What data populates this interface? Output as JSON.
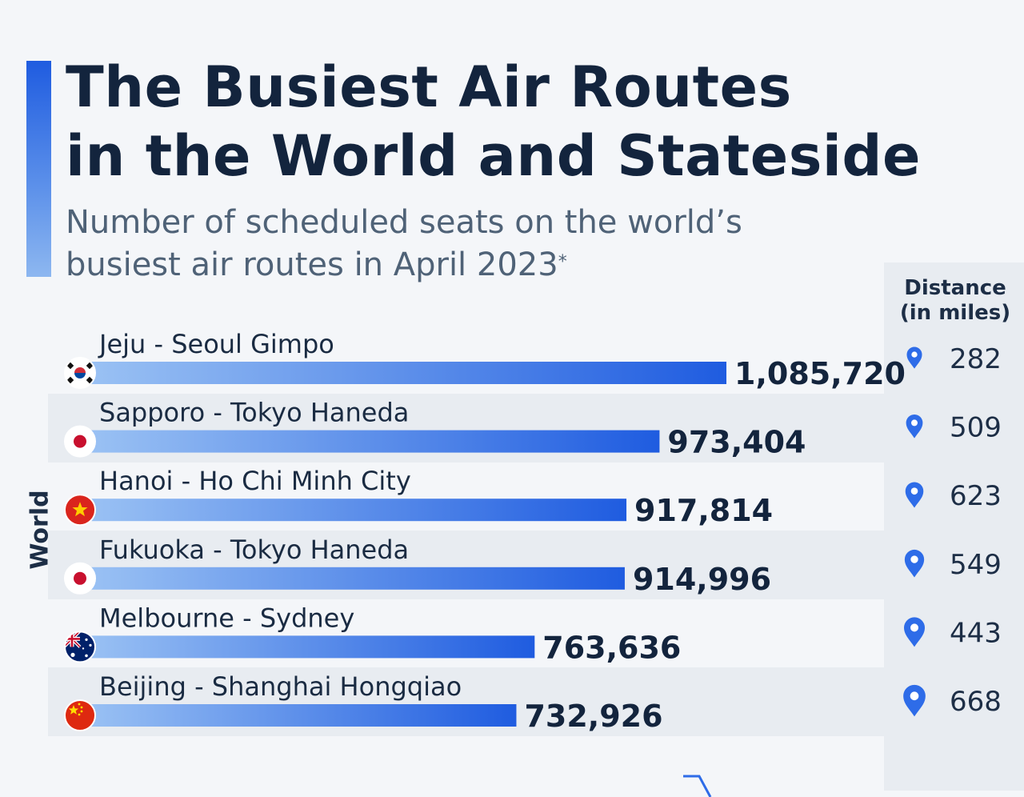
{
  "title_lines": [
    "The Busiest Air Routes",
    "in the World and Stateside"
  ],
  "subtitle_lines": [
    "Number of scheduled seats on the world’s",
    "busiest air routes in April 2023"
  ],
  "subtitle_footnote_mark": "*",
  "distance_header": [
    "Distance",
    "(in miles)"
  ],
  "group_label": "World",
  "colors": {
    "accent": "#1f5ce0",
    "bar_start": "#9cc3f4",
    "bar_end": "#1f5ce0",
    "pin": "#2e6ce8",
    "title": "#13243d",
    "band": "#e8ecf1",
    "background": "#f4f6f9"
  },
  "chart_data": {
    "type": "bar",
    "orientation": "horizontal",
    "title": "The Busiest Air Routes in the World and Stateside",
    "subtitle": "Number of scheduled seats on the world’s busiest air routes in April 2023*",
    "group": "World",
    "categories": [
      "Jeju - Seoul Gimpo",
      "Sapporo - Tokyo Haneda",
      "Hanoi - Ho Chi Minh City",
      "Fukuoka - Tokyo Haneda",
      "Melbourne - Sydney",
      "Beijing - Shanghai Hongqiao"
    ],
    "values": [
      1085720,
      973404,
      917814,
      914996,
      763636,
      732926
    ],
    "value_labels": [
      "1,085,720",
      "973,404",
      "917,814",
      "914,996",
      "763,636",
      "732,926"
    ],
    "distance_label": "Distance (in miles)",
    "distance_miles": [
      282,
      509,
      623,
      549,
      443,
      668
    ],
    "distance_labels": [
      "282",
      "509",
      "623",
      "549",
      "443",
      "668"
    ],
    "flags": [
      "south-korea-flag-icon",
      "japan-flag-icon",
      "vietnam-flag-icon",
      "japan-flag-icon",
      "australia-flag-icon",
      "china-flag-icon"
    ],
    "distance_icon": "map-pin-icon",
    "xlim": [
      0,
      1085720
    ]
  }
}
